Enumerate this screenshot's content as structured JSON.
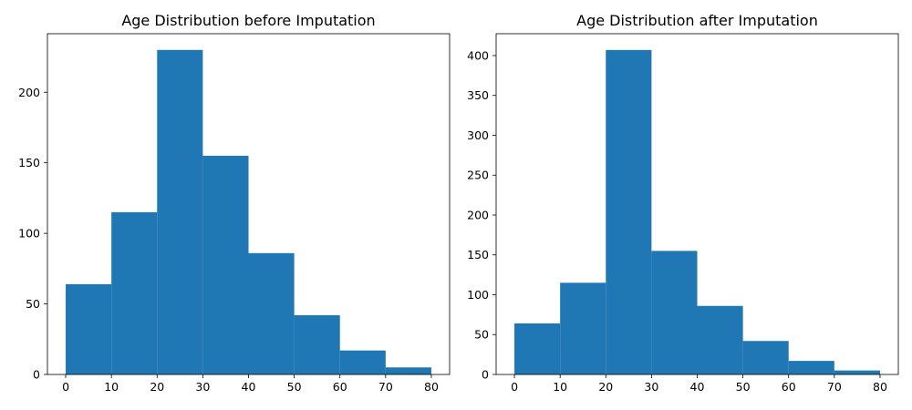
{
  "chart_data": [
    {
      "type": "bar",
      "title": "Age Distribution before Imputation",
      "xlabel": "",
      "ylabel": "",
      "bin_edges": [
        0,
        10,
        20,
        30,
        40,
        50,
        60,
        70,
        80
      ],
      "values": [
        64,
        115,
        230,
        155,
        86,
        42,
        17,
        5
      ],
      "xlim": [
        -4,
        84
      ],
      "ylim": [
        0,
        241.5
      ],
      "xticks": [
        0,
        10,
        20,
        30,
        40,
        50,
        60,
        70,
        80
      ],
      "yticks": [
        0,
        50,
        100,
        150,
        200
      ],
      "bar_color": "#1f77b4",
      "grid": false,
      "legend": "none"
    },
    {
      "type": "bar",
      "title": "Age Distribution after Imputation",
      "xlabel": "",
      "ylabel": "",
      "bin_edges": [
        0,
        10,
        20,
        30,
        40,
        50,
        60,
        70,
        80
      ],
      "values": [
        64,
        115,
        407,
        155,
        86,
        42,
        17,
        5
      ],
      "xlim": [
        -4,
        84
      ],
      "ylim": [
        0,
        427.4
      ],
      "xticks": [
        0,
        10,
        20,
        30,
        40,
        50,
        60,
        70,
        80
      ],
      "yticks": [
        0,
        50,
        100,
        150,
        200,
        250,
        300,
        350,
        400
      ],
      "bar_color": "#1f77b4",
      "grid": false,
      "legend": "none"
    }
  ]
}
